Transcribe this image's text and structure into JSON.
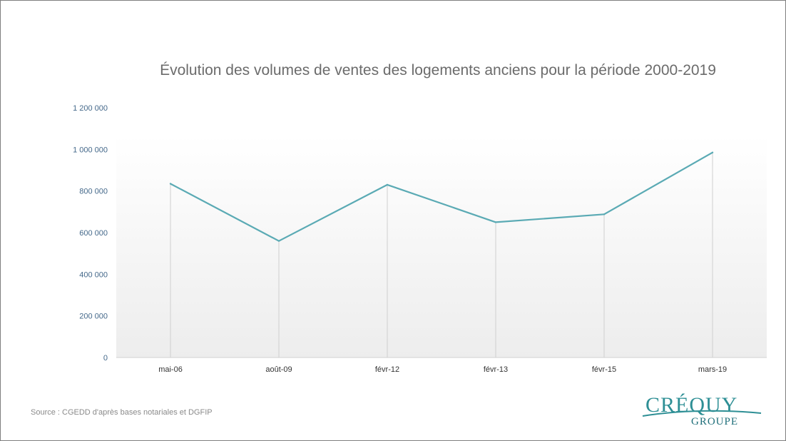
{
  "chart_data": {
    "type": "line",
    "title": "Évolution des volumes de ventes des logements anciens pour la période 2000-2019",
    "categories": [
      "mai-06",
      "août-09",
      "févr-12",
      "févr-13",
      "févr-15",
      "mars-19"
    ],
    "series": [
      {
        "values": [
          835000,
          560000,
          830000,
          650000,
          688000,
          985000
        ]
      }
    ],
    "ylim": [
      0,
      1200000
    ],
    "yticks": [
      0,
      200000,
      400000,
      600000,
      800000,
      1000000,
      1200000
    ],
    "ytick_labels": [
      "0",
      "200 000",
      "400 000",
      "600 000",
      "800 000",
      "1 000 000",
      "1 200 000"
    ],
    "xlabel": "",
    "ylabel": "",
    "grid": "vertical drop lines",
    "legend": "none",
    "line_color": "#5aaab4"
  },
  "source": "Source : CGEDD d'après bases notariales et DGFIP",
  "logo": {
    "top": "CRÉQUY",
    "bottom": "GROUPE"
  }
}
